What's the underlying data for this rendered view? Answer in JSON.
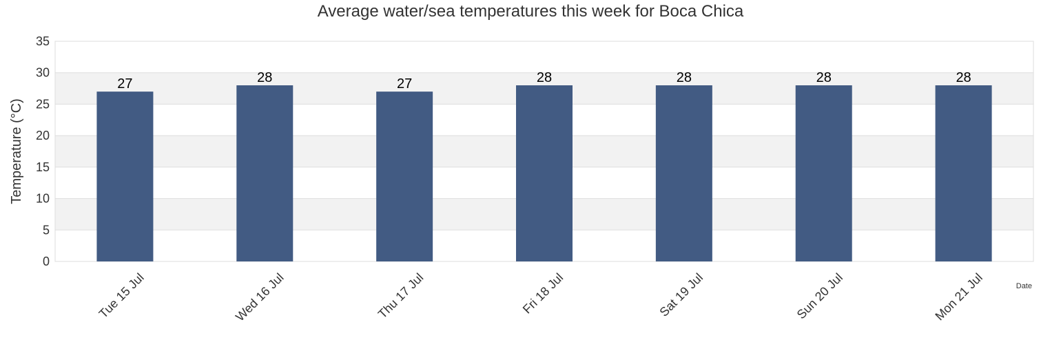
{
  "chart_data": {
    "type": "bar",
    "title": "Average water/sea temperatures this week for Boca Chica",
    "xlabel": "Date",
    "ylabel": "Temperature (°C)",
    "categories": [
      "Tue 15 Jul",
      "Wed 16 Jul",
      "Thu 17 Jul",
      "Fri 18 Jul",
      "Sat 19 Jul",
      "Sun 20 Jul",
      "Mon 21 Jul"
    ],
    "values": [
      27,
      28,
      27,
      28,
      28,
      28,
      28
    ],
    "ylim": [
      0,
      35
    ],
    "yticks": [
      0,
      5,
      10,
      15,
      20,
      25,
      30,
      35
    ],
    "grid": true,
    "bar_color": "#425b83",
    "band_color": "#f2f2f2"
  }
}
